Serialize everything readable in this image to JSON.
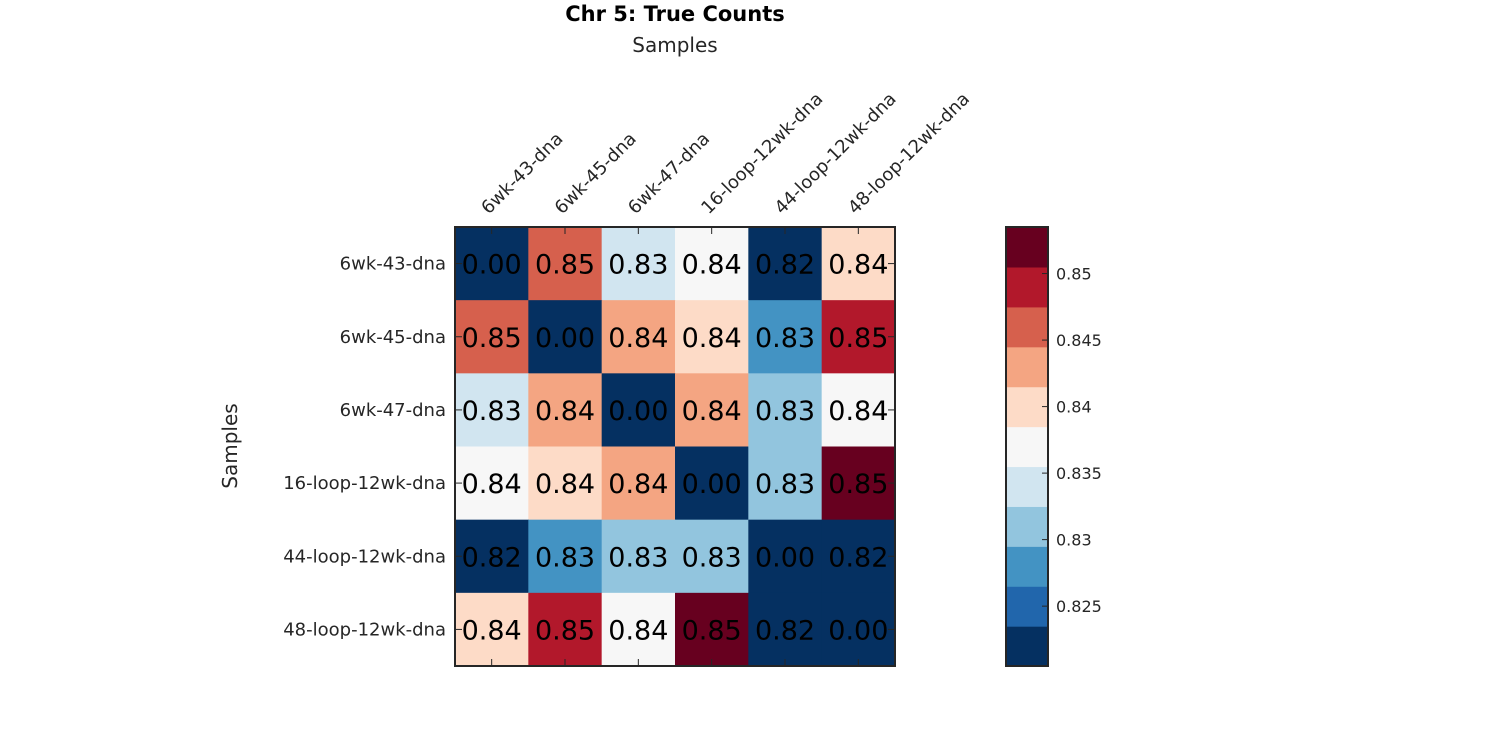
{
  "chart_data": {
    "type": "heatmap",
    "title": "Chr 5: True Counts",
    "xlabel": "Samples",
    "ylabel": "Samples",
    "x_categories": [
      "6wk-43-dna",
      "6wk-45-dna",
      "6wk-47-dna",
      "16-loop-12wk-dna",
      "44-loop-12wk-dna",
      "48-loop-12wk-dna"
    ],
    "y_categories": [
      "6wk-43-dna",
      "6wk-45-dna",
      "6wk-47-dna",
      "16-loop-12wk-dna",
      "44-loop-12wk-dna",
      "48-loop-12wk-dna"
    ],
    "values": [
      [
        0.0,
        0.847,
        0.834,
        0.837,
        0.82,
        0.841
      ],
      [
        0.847,
        0.0,
        0.843,
        0.841,
        0.828,
        0.85
      ],
      [
        0.834,
        0.843,
        0.0,
        0.843,
        0.831,
        0.837
      ],
      [
        0.837,
        0.841,
        0.843,
        0.0,
        0.831,
        0.852
      ],
      [
        0.82,
        0.828,
        0.831,
        0.831,
        0.0,
        0.82
      ],
      [
        0.841,
        0.85,
        0.837,
        0.852,
        0.82,
        0.0
      ]
    ],
    "value_labels": [
      [
        "0.00",
        "0.85",
        "0.83",
        "0.84",
        "0.82",
        "0.84"
      ],
      [
        "0.85",
        "0.00",
        "0.84",
        "0.84",
        "0.83",
        "0.85"
      ],
      [
        "0.83",
        "0.84",
        "0.00",
        "0.84",
        "0.83",
        "0.84"
      ],
      [
        "0.84",
        "0.84",
        "0.84",
        "0.00",
        "0.83",
        "0.85"
      ],
      [
        "0.82",
        "0.83",
        "0.83",
        "0.83",
        "0.00",
        "0.82"
      ],
      [
        "0.84",
        "0.85",
        "0.84",
        "0.85",
        "0.82",
        "0.00"
      ]
    ],
    "colorbar": {
      "range": [
        0.8205,
        0.8535
      ],
      "ticks": [
        0.825,
        0.83,
        0.835,
        0.84,
        0.845,
        0.85
      ],
      "tick_labels": [
        "0.825",
        "0.83",
        "0.835",
        "0.84",
        "0.845",
        "0.85"
      ],
      "colors": [
        "#053061",
        "#2166ac",
        "#4393c3",
        "#92c5de",
        "#d1e5f0",
        "#f7f7f7",
        "#fddbc7",
        "#f4a582",
        "#d6604d",
        "#b2182b",
        "#67001f"
      ]
    },
    "x_tick_position": "top",
    "grid": false
  }
}
